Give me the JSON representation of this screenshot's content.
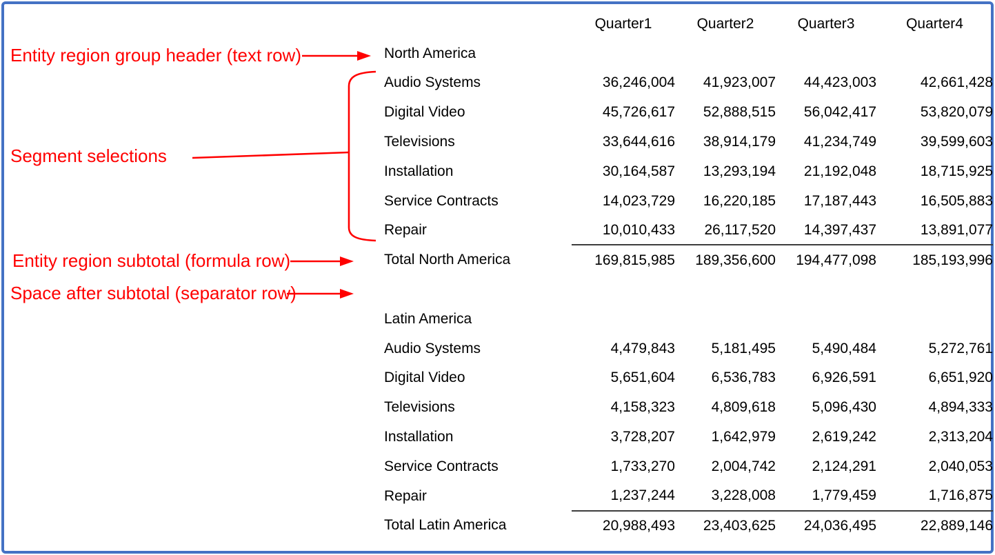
{
  "table": {
    "column_headers": [
      "Quarter1",
      "Quarter2",
      "Quarter3",
      "Quarter4"
    ],
    "groups": [
      {
        "header": "North America",
        "rows": [
          {
            "label": "Audio Systems",
            "values": [
              "36,246,004",
              "41,923,007",
              "44,423,003",
              "42,661,428"
            ]
          },
          {
            "label": "Digital Video",
            "values": [
              "45,726,617",
              "52,888,515",
              "56,042,417",
              "53,820,079"
            ]
          },
          {
            "label": "Televisions",
            "values": [
              "33,644,616",
              "38,914,179",
              "41,234,749",
              "39,599,603"
            ]
          },
          {
            "label": "Installation",
            "values": [
              "30,164,587",
              "13,293,194",
              "21,192,048",
              "18,715,925"
            ]
          },
          {
            "label": "Service Contracts",
            "values": [
              "14,023,729",
              "16,220,185",
              "17,187,443",
              "16,505,883"
            ]
          },
          {
            "label": "Repair",
            "values": [
              "10,010,433",
              "26,117,520",
              "14,397,437",
              "13,891,077"
            ]
          }
        ],
        "total": {
          "label": "Total North America",
          "values": [
            "169,815,985",
            "189,356,600",
            "194,477,098",
            "185,193,996"
          ]
        }
      },
      {
        "header": "Latin America",
        "rows": [
          {
            "label": "Audio Systems",
            "values": [
              "4,479,843",
              "5,181,495",
              "5,490,484",
              "5,272,761"
            ]
          },
          {
            "label": "Digital Video",
            "values": [
              "5,651,604",
              "6,536,783",
              "6,926,591",
              "6,651,920"
            ]
          },
          {
            "label": "Televisions",
            "values": [
              "4,158,323",
              "4,809,618",
              "5,096,430",
              "4,894,333"
            ]
          },
          {
            "label": "Installation",
            "values": [
              "3,728,207",
              "1,642,979",
              "2,619,242",
              "2,313,204"
            ]
          },
          {
            "label": "Service Contracts",
            "values": [
              "1,733,270",
              "2,004,742",
              "2,124,291",
              "2,040,053"
            ]
          },
          {
            "label": "Repair",
            "values": [
              "1,237,244",
              "3,228,008",
              "1,779,459",
              "1,716,875"
            ]
          }
        ],
        "total": {
          "label": "Total Latin America",
          "values": [
            "20,988,493",
            "23,403,625",
            "24,036,495",
            "22,889,146"
          ]
        }
      }
    ]
  },
  "annotations": {
    "group_header": "Entity region group header (text row)",
    "segments": "Segment selections",
    "subtotal": "Entity region subtotal (formula row)",
    "separator": "Space after subtotal (separator row)"
  },
  "colors": {
    "annotation_red": "#FF0000",
    "frame_blue": "#4472C4",
    "subtotal_rule": "#3C3C3C"
  }
}
